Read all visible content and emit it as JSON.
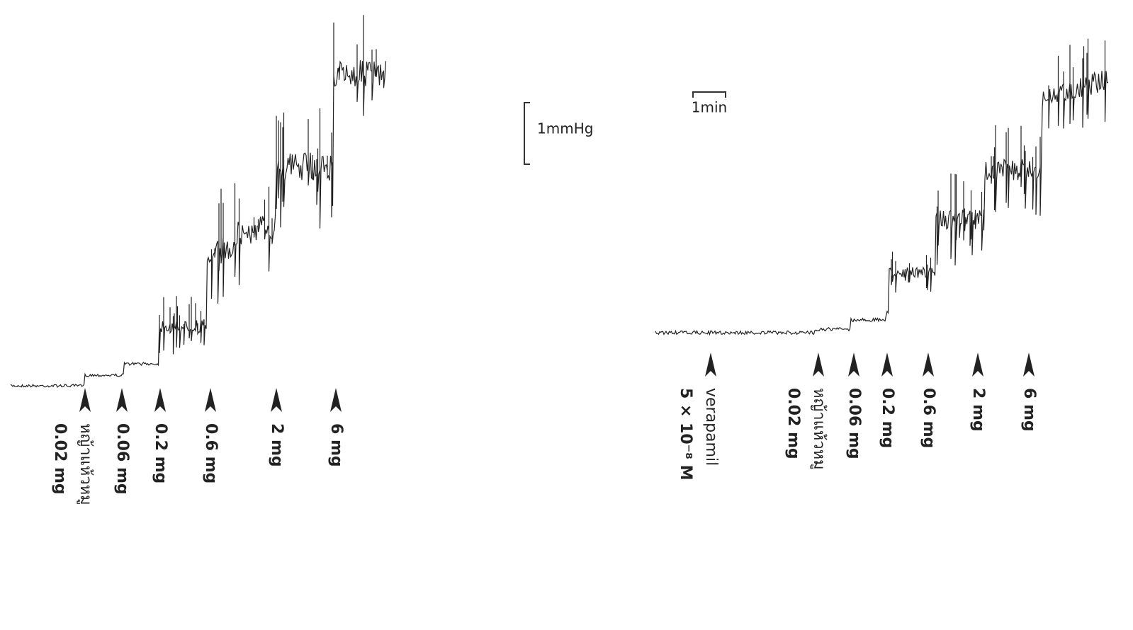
{
  "scale_bars": {
    "pressure": "1mmHg",
    "time": "1min"
  },
  "panels": [
    {
      "markers": [
        {
          "label": "หญ้าแห้วหมู",
          "dose": "0.02 mg"
        },
        {
          "dose": "0.06 mg"
        },
        {
          "dose": "0.2 mg"
        },
        {
          "dose": "0.6 mg"
        },
        {
          "dose": "2 mg"
        },
        {
          "dose": "6 mg"
        }
      ]
    },
    {
      "markers": [
        {
          "label": "verapamil",
          "dose": "5 × 10⁻⁸ M"
        },
        {
          "label": "หญ้าแห้วหมู",
          "dose": "0.02 mg"
        },
        {
          "dose": "0.06 mg"
        },
        {
          "dose": "0.2 mg"
        },
        {
          "dose": "0.6 mg"
        },
        {
          "dose": "2 mg"
        },
        {
          "dose": "6 mg"
        }
      ]
    }
  ]
}
